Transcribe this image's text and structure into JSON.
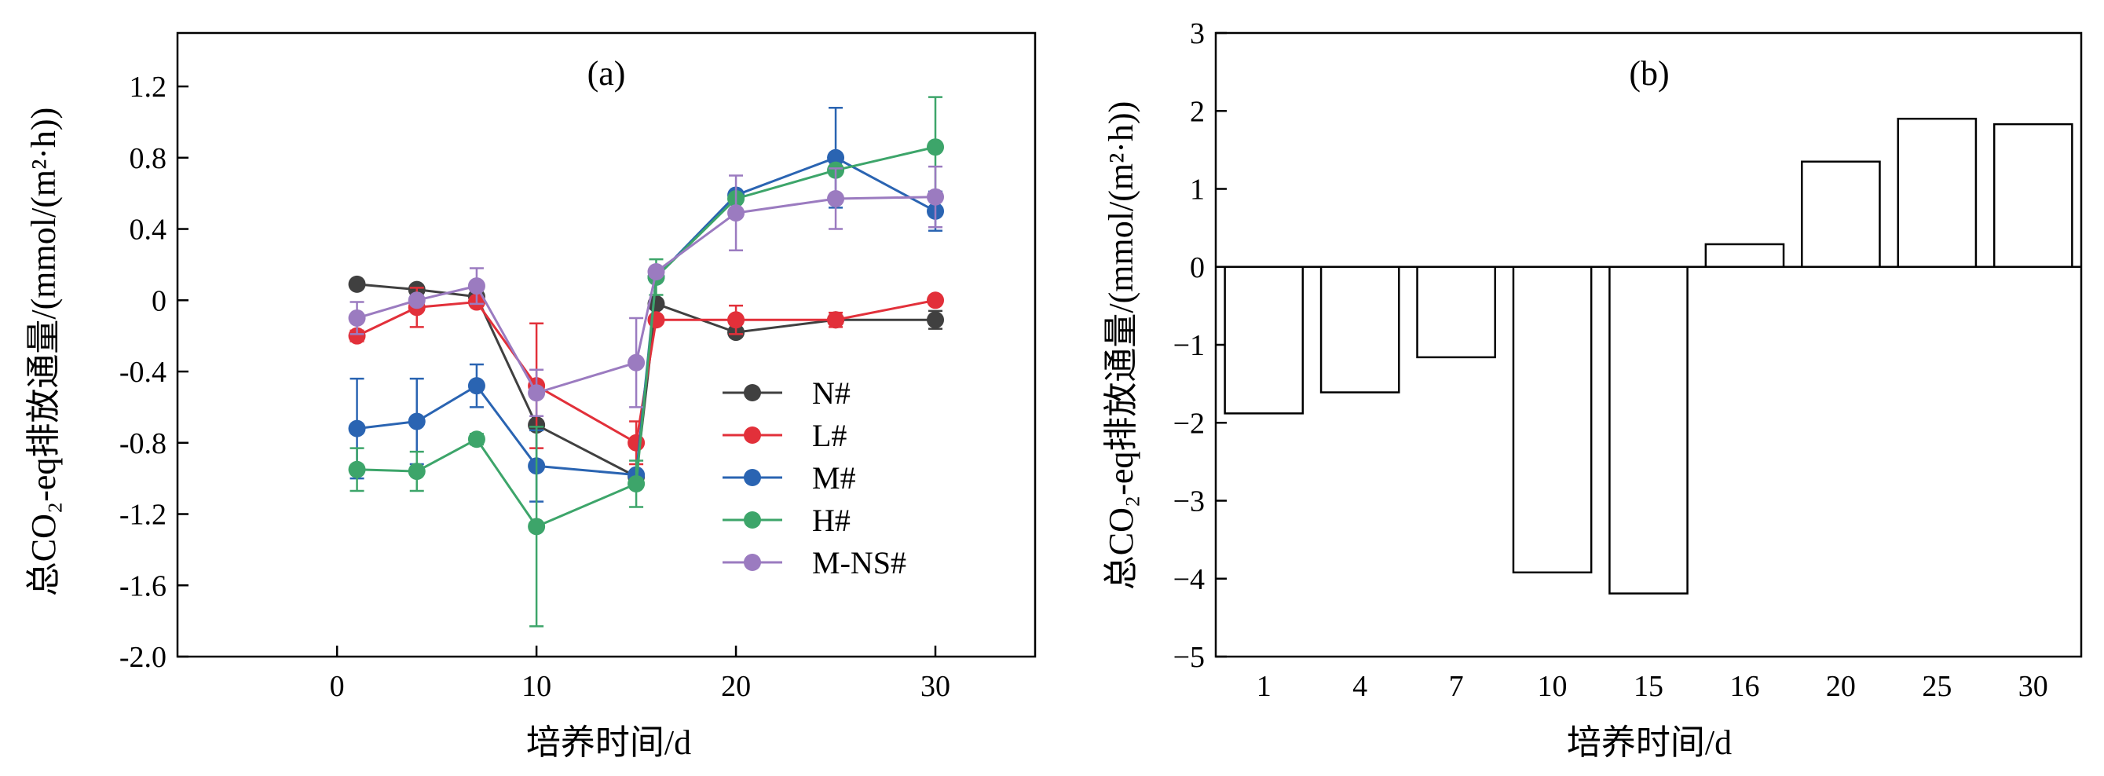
{
  "chart_data": [
    {
      "type": "line",
      "panel_label": "(a)",
      "xlabel": "培养时间/d",
      "ylabel": "总CO₂-eq排放通量/(mmol/(m²·h))",
      "xlim": [
        -8,
        35
      ],
      "ylim": [
        -2.0,
        1.5
      ],
      "xticks": [
        0,
        10,
        20,
        30
      ],
      "xtick_labels": [
        "0",
        "10",
        "20",
        "30"
      ],
      "yticks": [
        -2.0,
        -1.6,
        -1.2,
        -0.8,
        -0.4,
        0,
        0.4,
        0.8,
        1.2
      ],
      "ytick_labels": [
        "-2.0",
        "-1.6",
        "-1.2",
        "-0.8",
        "-0.4",
        "0",
        "0.4",
        "0.8",
        "1.2"
      ],
      "legend_position": "right-middle",
      "x": [
        1,
        4,
        7,
        10,
        15,
        16,
        20,
        25,
        30
      ],
      "series": [
        {
          "name": "N#",
          "color": "#404040",
          "values": [
            0.09,
            0.06,
            0.02,
            -0.7,
            -0.99,
            -0.02,
            -0.18,
            -0.11,
            -0.11
          ],
          "errors": [
            0.0,
            0.0,
            0.0,
            0.0,
            0.0,
            0.0,
            0.0,
            0.0,
            0.05
          ]
        },
        {
          "name": "L#",
          "color": "#e2303a",
          "values": [
            -0.2,
            -0.04,
            -0.01,
            -0.48,
            -0.8,
            -0.11,
            -0.11,
            -0.11,
            0.0
          ],
          "errors": [
            0.03,
            0.11,
            0.0,
            0.35,
            0.12,
            0.0,
            0.08,
            0.04,
            0.0
          ]
        },
        {
          "name": "M#",
          "color": "#2a64b2",
          "values": [
            -0.72,
            -0.68,
            -0.48,
            -0.93,
            -0.98,
            0.13,
            0.59,
            0.8,
            0.5
          ],
          "errors": [
            0.28,
            0.24,
            0.12,
            0.2,
            0.0,
            0.0,
            0.0,
            0.28,
            0.11
          ]
        },
        {
          "name": "H#",
          "color": "#3da56a",
          "values": [
            -0.95,
            -0.96,
            -0.78,
            -1.27,
            -1.03,
            0.13,
            0.57,
            0.73,
            0.86
          ],
          "errors": [
            0.12,
            0.11,
            0.03,
            0.56,
            0.13,
            0.1,
            0.0,
            0.0,
            0.28
          ]
        },
        {
          "name": "M-NS#",
          "color": "#9b7bc0",
          "values": [
            -0.1,
            0.0,
            0.08,
            -0.52,
            -0.35,
            0.16,
            0.49,
            0.57,
            0.58
          ],
          "errors": [
            0.09,
            0.0,
            0.1,
            0.13,
            0.25,
            0.0,
            0.21,
            0.17,
            0.17
          ]
        }
      ]
    },
    {
      "type": "bar",
      "panel_label": "(b)",
      "xlabel": "培养时间/d",
      "ylabel": "总CO₂-eq排放通量/(mmol/(m²·h))",
      "ylim": [
        -5,
        3
      ],
      "yticks": [
        -5,
        -4,
        -3,
        -2,
        -1,
        0,
        1,
        2,
        3
      ],
      "ytick_labels": [
        "−5",
        "−4",
        "−3",
        "−2",
        "−1",
        "0",
        "1",
        "2",
        "3"
      ],
      "categories": [
        "1",
        "4",
        "7",
        "10",
        "15",
        "16",
        "20",
        "25",
        "30"
      ],
      "values": [
        -1.88,
        -1.61,
        -1.16,
        -3.92,
        -4.19,
        0.29,
        1.35,
        1.9,
        1.83
      ]
    }
  ]
}
